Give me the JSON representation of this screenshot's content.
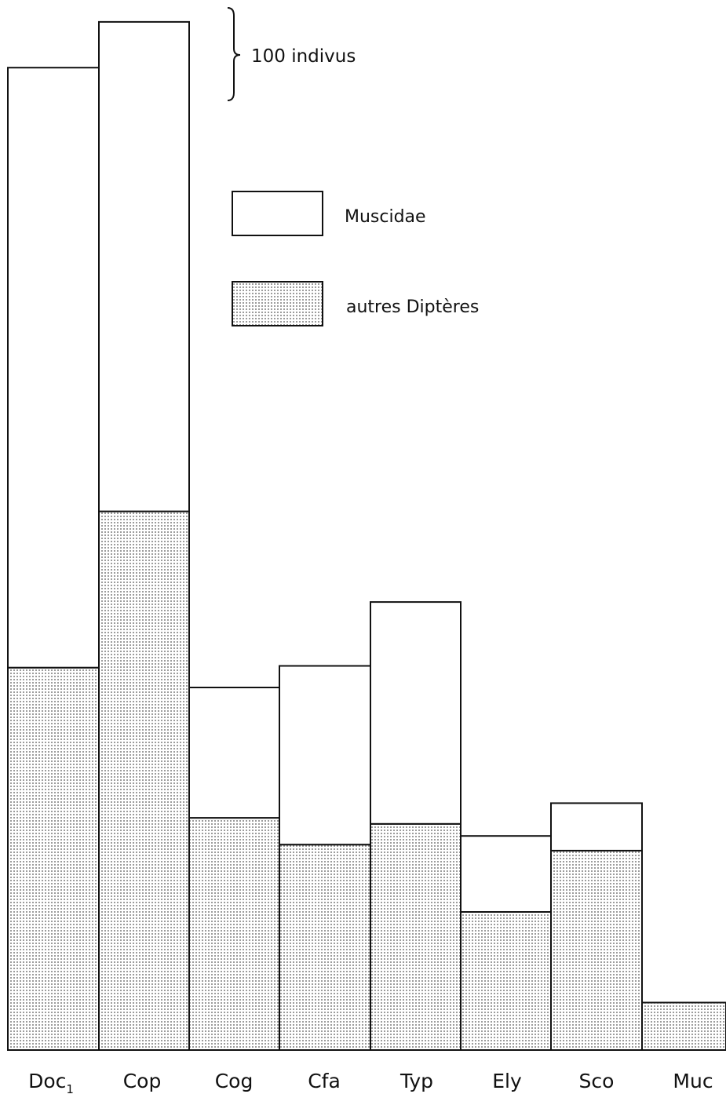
{
  "chart_data": {
    "type": "bar",
    "stacked": true,
    "categories": [
      "Doc",
      "Cop",
      "Cog",
      "Cfa",
      "Typ",
      "Ely",
      "Sco",
      "Muc"
    ],
    "category_subscripts": [
      "1",
      "",
      "",
      "",
      "",
      "",
      "",
      ""
    ],
    "series": [
      {
        "name": "autres Diptères",
        "values": [
          443,
          624,
          269,
          238,
          262,
          160,
          231,
          55
        ]
      },
      {
        "name": "Muscidae",
        "values": [
          695,
          567,
          151,
          207,
          257,
          88,
          55,
          0
        ]
      }
    ],
    "scale_bar": {
      "value": 100,
      "label": "100 indivus"
    },
    "legend": [
      {
        "label": "Muscidae",
        "pattern": "plain"
      },
      {
        "label": "autres Diptères",
        "pattern": "dotted"
      }
    ],
    "legend_position": "top-right",
    "grid": false,
    "title": "",
    "xlabel": "",
    "ylabel": ""
  },
  "colors": {
    "ink": "#111111",
    "dots": "#555555",
    "fill": "#ffffff"
  }
}
